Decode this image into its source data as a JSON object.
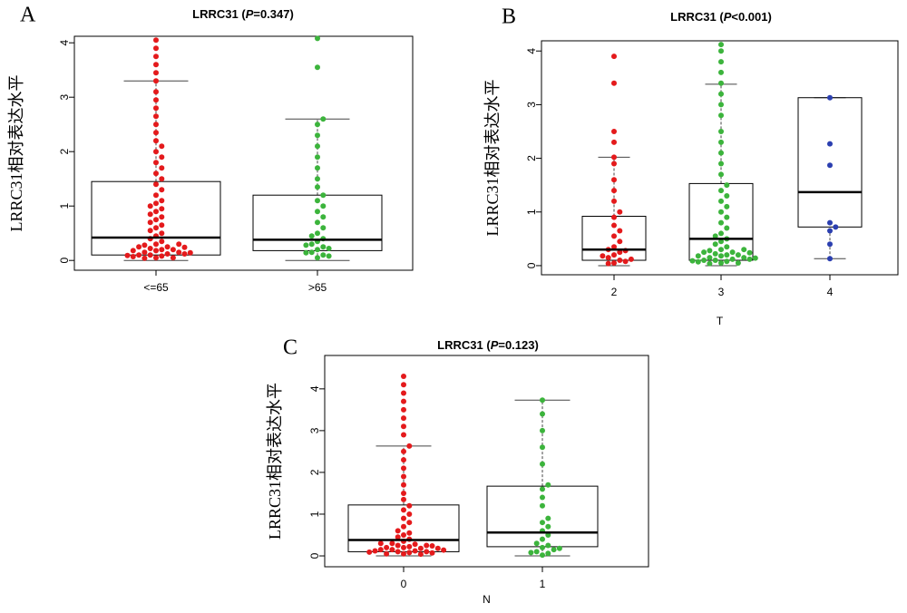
{
  "chart_data": [
    {
      "type": "box",
      "panel": "A",
      "title": [
        "LRRC31 (",
        "P",
        "=0.347)"
      ],
      "ylabel": "LRRC31相对表达水平",
      "categories": [
        "<=65",
        ">65"
      ],
      "colors": [
        "#e41a1c",
        "#3cb43c"
      ],
      "ylim": [
        -0.18,
        4.12
      ],
      "yticks": [
        0,
        1,
        2,
        3,
        4
      ],
      "boxes": [
        [
          0,
          0.1,
          0.42,
          1.45,
          3.3
        ],
        [
          0,
          0.18,
          0.38,
          1.2,
          2.6
        ]
      ],
      "points": [
        [
          0.05,
          0.08,
          0.1,
          0.12,
          0.15,
          0.18,
          0.2,
          0.22,
          0.25,
          0.28,
          0.05,
          0.1,
          0.15,
          0.2,
          0.25,
          0.3,
          0.07,
          0.12,
          0.18,
          0.24,
          0.3,
          0.35,
          0.04,
          0.09,
          0.14,
          0.4,
          0.45,
          0.5,
          0.55,
          0.6,
          0.65,
          0.7,
          0.75,
          0.8,
          0.85,
          0.9,
          0.95,
          1.0,
          1.05,
          1.1,
          1.2,
          1.3,
          1.4,
          1.5,
          1.6,
          1.7,
          1.8,
          1.9,
          2.0,
          2.1,
          2.2,
          2.35,
          2.5,
          2.65,
          2.8,
          2.95,
          3.1,
          3.3,
          3.45,
          3.6,
          3.75,
          3.9,
          4.05
        ],
        [
          0.05,
          0.1,
          0.15,
          0.2,
          0.25,
          0.3,
          0.08,
          0.14,
          0.22,
          0.28,
          0.35,
          0.4,
          0.45,
          0.5,
          0.6,
          0.7,
          0.8,
          0.9,
          1.0,
          1.1,
          1.2,
          1.35,
          1.5,
          1.7,
          1.9,
          2.1,
          2.3,
          2.5,
          2.6,
          3.55,
          4.08
        ]
      ]
    },
    {
      "type": "box",
      "panel": "B",
      "title": [
        "LRRC31 (",
        "P",
        "<0.001)"
      ],
      "ylabel": "LRRC31相对表达水平",
      "xlabel": "T",
      "categories": [
        "2",
        "3",
        "4"
      ],
      "colors": [
        "#e41a1c",
        "#3cb43c",
        "#2b3fb0"
      ],
      "ylim": [
        -0.17,
        4.19
      ],
      "yticks": [
        0,
        1,
        2,
        3,
        4
      ],
      "boxes": [
        [
          0,
          0.1,
          0.3,
          0.92,
          2.02
        ],
        [
          0,
          0.1,
          0.5,
          1.53,
          3.38
        ],
        [
          0.13,
          0.72,
          1.37,
          3.13,
          3.13
        ]
      ],
      "points": [
        [
          0.05,
          0.1,
          0.15,
          0.2,
          0.25,
          0.3,
          0.08,
          0.18,
          0.28,
          0.04,
          0.12,
          0.35,
          0.45,
          0.55,
          0.65,
          0.75,
          0.9,
          1.0,
          1.2,
          1.4,
          1.6,
          1.9,
          2.02,
          2.3,
          2.5,
          3.4,
          3.9
        ],
        [
          0.05,
          0.08,
          0.1,
          0.12,
          0.15,
          0.18,
          0.2,
          0.22,
          0.25,
          0.28,
          0.05,
          0.1,
          0.15,
          0.2,
          0.25,
          0.3,
          0.07,
          0.12,
          0.18,
          0.24,
          0.3,
          0.35,
          0.04,
          0.09,
          0.14,
          0.4,
          0.45,
          0.5,
          0.55,
          0.6,
          0.7,
          0.8,
          0.9,
          1.0,
          1.1,
          1.2,
          1.3,
          1.4,
          1.5,
          1.7,
          1.9,
          2.1,
          2.3,
          2.5,
          2.8,
          3.0,
          3.2,
          3.4,
          3.6,
          3.8,
          4.0,
          4.12
        ],
        [
          3.13,
          2.27,
          1.87,
          0.8,
          0.72,
          0.65,
          0.4,
          0.13
        ]
      ]
    },
    {
      "type": "box",
      "panel": "C",
      "title": [
        "LRRC31 (",
        "P",
        "=0.123)"
      ],
      "ylabel": "LRRC31相对表达水平",
      "xlabel": "N",
      "categories": [
        "0",
        "1"
      ],
      "colors": [
        "#e41a1c",
        "#3cb43c"
      ],
      "ylim": [
        -0.26,
        4.8
      ],
      "yticks": [
        0,
        1,
        2,
        3,
        4
      ],
      "boxes": [
        [
          0,
          0.1,
          0.38,
          1.22,
          2.63
        ],
        [
          0,
          0.22,
          0.56,
          1.67,
          3.73
        ]
      ],
      "points": [
        [
          0.05,
          0.08,
          0.1,
          0.12,
          0.15,
          0.18,
          0.2,
          0.22,
          0.25,
          0.28,
          0.05,
          0.1,
          0.15,
          0.2,
          0.25,
          0.3,
          0.07,
          0.12,
          0.18,
          0.24,
          0.3,
          0.35,
          0.04,
          0.09,
          0.14,
          0.4,
          0.45,
          0.5,
          0.55,
          0.6,
          0.7,
          0.8,
          0.9,
          1.0,
          1.1,
          1.2,
          1.35,
          1.5,
          1.7,
          1.9,
          2.1,
          2.3,
          2.5,
          2.63,
          2.9,
          3.1,
          3.3,
          3.5,
          3.7,
          3.9,
          4.1,
          4.3
        ],
        [
          0.02,
          0.06,
          0.1,
          0.15,
          0.2,
          0.25,
          0.3,
          0.08,
          0.18,
          0.4,
          0.5,
          0.6,
          0.7,
          0.8,
          0.9,
          1.2,
          1.4,
          1.6,
          1.7,
          2.2,
          2.6,
          3.0,
          3.4,
          3.73
        ]
      ]
    }
  ]
}
